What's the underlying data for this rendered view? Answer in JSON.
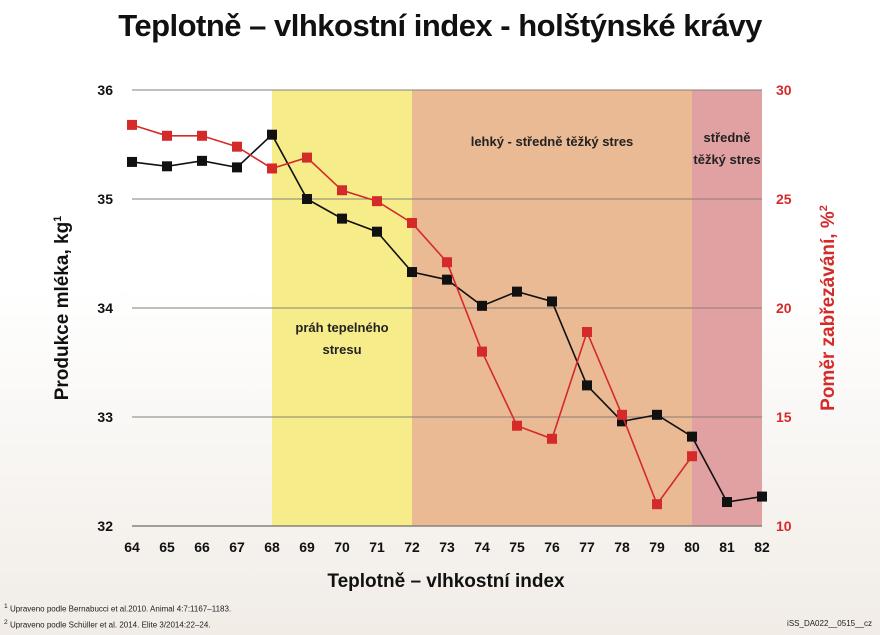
{
  "chart_data": {
    "type": "line",
    "title": "Teplotně – vlhkostní index - holštýnské krávy",
    "xlabel": "Teplotně – vlhkostní index",
    "ylabel_left": "Produkce mléka, kg",
    "ylabel_left_sup": "1",
    "ylabel_right": "Poměr zabřezávání, %",
    "ylabel_right_sup": "2",
    "x": [
      64,
      65,
      66,
      67,
      68,
      69,
      70,
      71,
      72,
      73,
      74,
      75,
      76,
      77,
      78,
      79,
      80,
      81,
      82
    ],
    "xlim": [
      64,
      82
    ],
    "ylim_left": [
      32,
      36
    ],
    "ylim_right": [
      10,
      30
    ],
    "yticks_left": [
      32,
      33,
      34,
      35,
      36
    ],
    "yticks_right": [
      10,
      15,
      20,
      25,
      30
    ],
    "grid": true,
    "series": [
      {
        "axis": "left",
        "color": "#111111",
        "values": [
          35.34,
          35.3,
          35.35,
          35.29,
          35.59,
          35.0,
          34.82,
          34.7,
          34.33,
          34.26,
          34.02,
          34.15,
          34.06,
          33.29,
          32.96,
          33.02,
          32.82,
          32.22,
          32.27
        ]
      },
      {
        "axis": "right",
        "color": "#d42a2a",
        "values": [
          28.4,
          27.9,
          27.9,
          27.4,
          26.4,
          26.9,
          25.4,
          24.9,
          23.9,
          22.1,
          18.0,
          14.6,
          14.0,
          18.9,
          15.1,
          11.0,
          13.2,
          null,
          null
        ]
      }
    ],
    "zones": [
      {
        "from": 68,
        "to": 72,
        "label_lines": [
          "práh tepelného",
          "stresu"
        ],
        "color": "#f7ec8a"
      },
      {
        "from": 72,
        "to": 80,
        "label_lines": [
          "lehký - středně těžký stres"
        ],
        "color": "#eaba94"
      },
      {
        "from": 80,
        "to": 82,
        "label_lines": [
          "středně",
          "těžký stres"
        ],
        "color": "#e1a0a1"
      }
    ]
  },
  "footnotes": {
    "note1_num": "1",
    "note1_text": "Upraveno podle Bernabucci et al.2010. Animal 4:7:1167–1183.",
    "note2_num": "2",
    "note2_text": "Upraveno podle Schüller et al. 2014. Elite 3/2014:22–24.",
    "code": "iSS_DA022__0515__cz"
  }
}
